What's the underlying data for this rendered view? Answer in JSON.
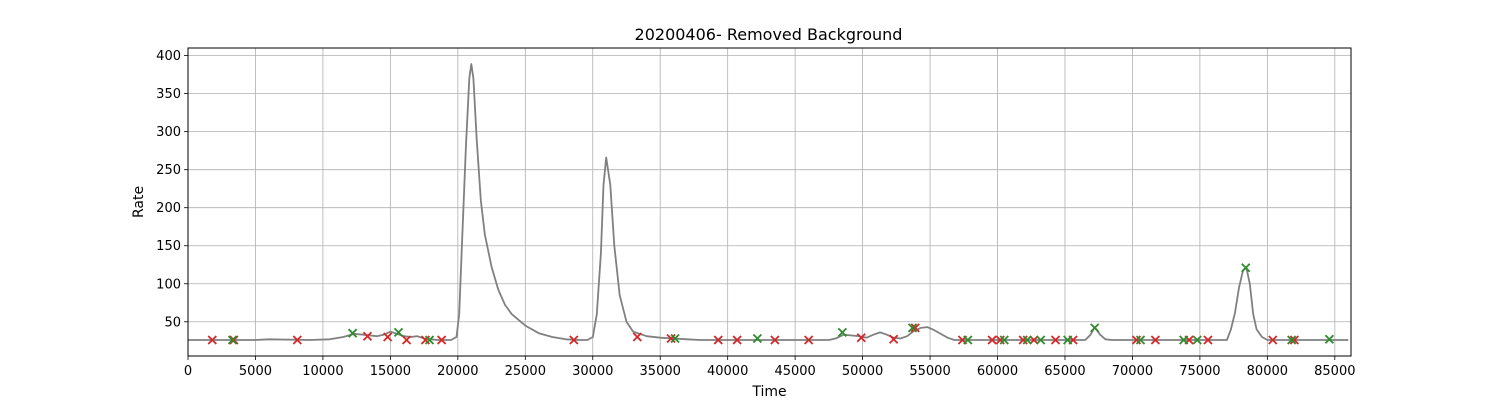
{
  "chart_data": {
    "type": "line",
    "title": "20200406- Removed Background",
    "xlabel": "Time",
    "ylabel": "Rate",
    "xlim": [
      0,
      86200
    ],
    "ylim": [
      5,
      410
    ],
    "xticks": [
      0,
      5000,
      10000,
      15000,
      20000,
      25000,
      30000,
      35000,
      40000,
      45000,
      50000,
      55000,
      60000,
      65000,
      70000,
      75000,
      80000,
      85000
    ],
    "yticks": [
      50,
      100,
      150,
      200,
      250,
      300,
      350,
      400
    ],
    "grid": true,
    "colors": {
      "line": "#808080",
      "peaks": "#2e8b2e",
      "valleys": "#d62728",
      "grid": "#b0b0b0"
    },
    "series": [
      {
        "kind": "line",
        "x": [
          0,
          4000,
          5000,
          6000,
          9000,
          10500,
          11500,
          12300,
          13000,
          13500,
          14000,
          14500,
          15000,
          15500,
          16000,
          16500,
          17000,
          17500,
          18000,
          18500,
          19000,
          19500,
          19900,
          20100,
          20300,
          20600,
          20850,
          21000,
          21150,
          21400,
          21700,
          22000,
          22500,
          23000,
          23500,
          24000,
          25000,
          26000,
          27000,
          28000,
          29000,
          29600,
          30000,
          30300,
          30600,
          30800,
          31000,
          31300,
          31600,
          32000,
          32500,
          33000,
          34000,
          35000,
          36000,
          37000,
          38000,
          47500,
          48000,
          48600,
          49200,
          49800,
          50300,
          50800,
          51300,
          51800,
          52300,
          52800,
          53300,
          53800,
          54300,
          54800,
          55300,
          55800,
          56300,
          56800,
          57300,
          66500,
          66900,
          67200,
          67600,
          68000,
          68500,
          77000,
          77300,
          77600,
          77900,
          78200,
          78450,
          78700,
          78950,
          79200,
          79600,
          80000,
          86000
        ],
        "y": [
          26,
          26,
          26,
          27,
          26,
          27,
          30,
          34,
          33,
          32,
          31,
          33,
          37,
          34,
          31,
          30,
          31,
          28,
          27,
          26,
          26,
          26,
          30,
          60,
          150,
          280,
          370,
          389,
          370,
          290,
          210,
          165,
          122,
          92,
          72,
          60,
          45,
          35,
          30,
          27,
          26,
          26,
          30,
          60,
          140,
          230,
          266,
          230,
          150,
          85,
          50,
          37,
          31,
          29,
          28,
          27,
          26,
          26,
          28,
          33,
          32,
          31,
          29,
          33,
          36,
          33,
          29,
          28,
          31,
          38,
          42,
          43,
          39,
          34,
          29,
          26,
          26,
          26,
          33,
          43,
          33,
          27,
          26,
          26,
          40,
          62,
          95,
          118,
          121,
          100,
          60,
          40,
          30,
          26,
          26
        ]
      },
      {
        "kind": "peaks",
        "x": [
          3300,
          12200,
          15600,
          17900,
          36100,
          42200,
          48500,
          53700,
          57800,
          60500,
          62200,
          63200,
          65200,
          67200,
          70600,
          73800,
          74800,
          78400,
          81800,
          84600
        ],
        "y": [
          26,
          35,
          36,
          26,
          28,
          28,
          36,
          42,
          26,
          26,
          26,
          26,
          26,
          42,
          26,
          26,
          26,
          121,
          26,
          27
        ]
      },
      {
        "kind": "valleys",
        "x": [
          1800,
          3400,
          8100,
          13300,
          14800,
          16200,
          17600,
          18800,
          28600,
          33300,
          35800,
          39300,
          40700,
          43500,
          46000,
          49900,
          52300,
          53900,
          57400,
          59600,
          60200,
          61900,
          62700,
          64300,
          65600,
          70300,
          71700,
          74200,
          75600,
          80400,
          82000
        ],
        "y": [
          26,
          26,
          26,
          31,
          30,
          26,
          26,
          26,
          26,
          30,
          28,
          26,
          26,
          26,
          26,
          29,
          27,
          42,
          26,
          26,
          26,
          26,
          26,
          26,
          26,
          26,
          26,
          26,
          26,
          26,
          26
        ]
      }
    ]
  }
}
